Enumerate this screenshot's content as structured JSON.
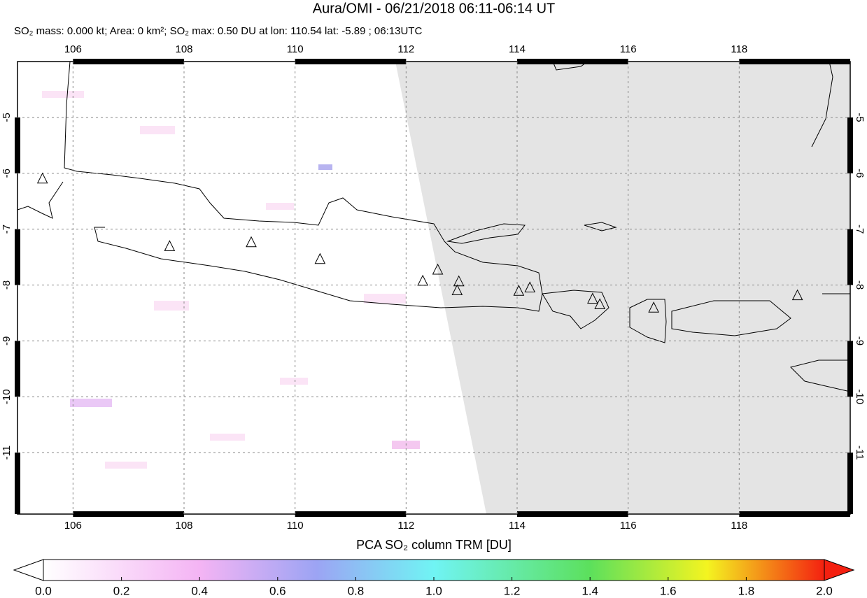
{
  "title": "Aura/OMI - 06/21/2018 06:11-06:14 UT",
  "subtitle": "SO₂ mass: 0.000 kt; Area: 0 km²; SO₂ max: 0.50 DU at lon: 110.54 lat: -5.89 ; 06:13UTC",
  "map": {
    "lonlim": [
      105,
      120
    ],
    "latlim": [
      -12.1,
      -4
    ],
    "lonticks": [
      106,
      108,
      110,
      112,
      114,
      116,
      118
    ],
    "latticks": [
      -5,
      -6,
      -7,
      -8,
      -9,
      -10,
      -11
    ],
    "grid": true,
    "volcanoes": [
      {
        "lon": 105.45,
        "lat": -6.1
      },
      {
        "lon": 107.74,
        "lat": -7.31
      },
      {
        "lon": 109.21,
        "lat": -7.24
      },
      {
        "lon": 110.45,
        "lat": -7.54
      },
      {
        "lon": 112.3,
        "lat": -7.93
      },
      {
        "lon": 112.57,
        "lat": -7.73
      },
      {
        "lon": 112.95,
        "lat": -7.94
      },
      {
        "lon": 112.92,
        "lat": -8.1
      },
      {
        "lon": 114.03,
        "lat": -8.11
      },
      {
        "lon": 114.23,
        "lat": -8.05
      },
      {
        "lon": 115.36,
        "lat": -8.25
      },
      {
        "lon": 115.49,
        "lat": -8.35
      },
      {
        "lon": 116.46,
        "lat": -8.41
      },
      {
        "lon": 119.05,
        "lat": -8.19
      }
    ]
  },
  "colorbar": {
    "label": "PCA SO₂ column TRM [DU]",
    "lim": [
      0,
      2
    ],
    "ticks": [
      {
        "value": 0,
        "label": "0.0"
      },
      {
        "value": 0.2,
        "label": "0.2"
      },
      {
        "value": 0.4,
        "label": "0.4"
      },
      {
        "value": 0.6,
        "label": "0.6"
      },
      {
        "value": 0.8,
        "label": "0.8"
      },
      {
        "value": 1,
        "label": "1.0"
      },
      {
        "value": 1.2,
        "label": "1.2"
      },
      {
        "value": 1.4,
        "label": "1.4"
      },
      {
        "value": 1.6,
        "label": "1.6"
      },
      {
        "value": 1.8,
        "label": "1.8"
      },
      {
        "value": 2,
        "label": "2.0"
      }
    ],
    "stops": [
      {
        "value": 0,
        "color": "#ffffff"
      },
      {
        "value": 0.4,
        "color": "#f4b4f4"
      },
      {
        "value": 0.7,
        "color": "#9ca4f4"
      },
      {
        "value": 1,
        "color": "#70f4f4"
      },
      {
        "value": 1.4,
        "color": "#5ce05c"
      },
      {
        "value": 1.7,
        "color": "#f4f420"
      },
      {
        "value": 2,
        "color": "#f42010"
      }
    ]
  }
}
